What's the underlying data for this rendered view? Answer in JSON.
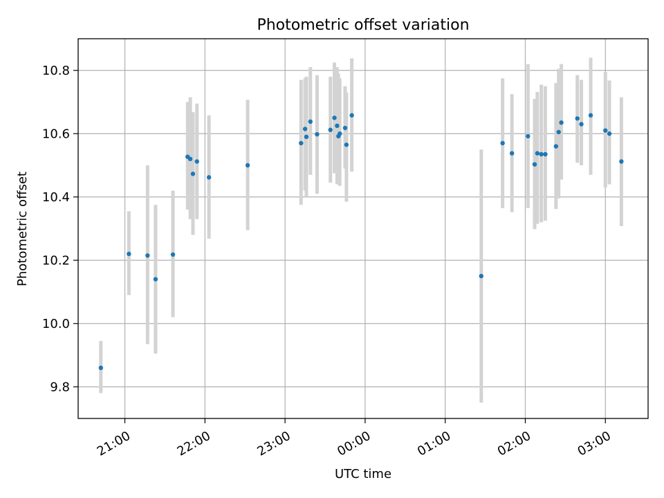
{
  "chart_data": {
    "type": "scatter",
    "title": "Photometric offset variation",
    "xlabel": "UTC time",
    "ylabel": "Photometric offset",
    "x_ticks": [
      "21:00",
      "22:00",
      "23:00",
      "00:00",
      "01:00",
      "02:00",
      "03:00"
    ],
    "y_ticks": [
      "9.8",
      "10.0",
      "10.2",
      "10.4",
      "10.6",
      "10.8"
    ],
    "ylim": [
      9.7,
      10.9
    ],
    "xlim": [
      "20:25",
      "03:32"
    ],
    "grid": true,
    "colors": {
      "point": "#1f77b4",
      "errorbar": "#d3d3d3"
    },
    "points": [
      {
        "x": "20:42",
        "y": 9.86,
        "lo": 9.78,
        "hi": 9.945
      },
      {
        "x": "21:03",
        "y": 10.22,
        "lo": 10.09,
        "hi": 10.355
      },
      {
        "x": "21:17",
        "y": 10.215,
        "lo": 9.935,
        "hi": 10.5
      },
      {
        "x": "21:23",
        "y": 10.14,
        "lo": 9.905,
        "hi": 10.375
      },
      {
        "x": "21:36",
        "y": 10.218,
        "lo": 10.02,
        "hi": 10.42
      },
      {
        "x": "21:47",
        "y": 10.527,
        "lo": 10.36,
        "hi": 10.7
      },
      {
        "x": "21:49",
        "y": 10.52,
        "lo": 10.33,
        "hi": 10.715
      },
      {
        "x": "21:51",
        "y": 10.473,
        "lo": 10.28,
        "hi": 10.668
      },
      {
        "x": "21:54",
        "y": 10.512,
        "lo": 10.33,
        "hi": 10.695
      },
      {
        "x": "22:03",
        "y": 10.462,
        "lo": 10.268,
        "hi": 10.658
      },
      {
        "x": "22:32",
        "y": 10.5,
        "lo": 10.295,
        "hi": 10.707
      },
      {
        "x": "23:12",
        "y": 10.57,
        "lo": 10.375,
        "hi": 10.77
      },
      {
        "x": "23:15",
        "y": 10.615,
        "lo": 10.42,
        "hi": 10.775
      },
      {
        "x": "23:16",
        "y": 10.59,
        "lo": 10.4,
        "hi": 10.78
      },
      {
        "x": "23:19",
        "y": 10.638,
        "lo": 10.47,
        "hi": 10.81
      },
      {
        "x": "23:24",
        "y": 10.598,
        "lo": 10.41,
        "hi": 10.785
      },
      {
        "x": "23:34",
        "y": 10.612,
        "lo": 10.445,
        "hi": 10.78
      },
      {
        "x": "23:37",
        "y": 10.65,
        "lo": 10.475,
        "hi": 10.825
      },
      {
        "x": "23:39",
        "y": 10.625,
        "lo": 10.44,
        "hi": 10.81
      },
      {
        "x": "23:40",
        "y": 10.592,
        "lo": 10.44,
        "hi": 10.79
      },
      {
        "x": "23:41",
        "y": 10.6,
        "lo": 10.435,
        "hi": 10.775
      },
      {
        "x": "23:45",
        "y": 10.618,
        "lo": 10.49,
        "hi": 10.75
      },
      {
        "x": "23:46",
        "y": 10.565,
        "lo": 10.385,
        "hi": 10.73
      },
      {
        "x": "23:50",
        "y": 10.658,
        "lo": 10.48,
        "hi": 10.838
      },
      {
        "x": "01:27",
        "y": 10.15,
        "lo": 9.75,
        "hi": 10.55
      },
      {
        "x": "01:43",
        "y": 10.57,
        "lo": 10.365,
        "hi": 10.775
      },
      {
        "x": "01:50",
        "y": 10.538,
        "lo": 10.352,
        "hi": 10.725
      },
      {
        "x": "02:02",
        "y": 10.592,
        "lo": 10.365,
        "hi": 10.82
      },
      {
        "x": "02:07",
        "y": 10.503,
        "lo": 10.298,
        "hi": 10.71
      },
      {
        "x": "02:09",
        "y": 10.538,
        "lo": 10.315,
        "hi": 10.732
      },
      {
        "x": "02:12",
        "y": 10.535,
        "lo": 10.32,
        "hi": 10.755
      },
      {
        "x": "02:15",
        "y": 10.535,
        "lo": 10.325,
        "hi": 10.75
      },
      {
        "x": "02:23",
        "y": 10.56,
        "lo": 10.362,
        "hi": 10.76
      },
      {
        "x": "02:25",
        "y": 10.605,
        "lo": 10.395,
        "hi": 10.805
      },
      {
        "x": "02:27",
        "y": 10.635,
        "lo": 10.455,
        "hi": 10.82
      },
      {
        "x": "02:39",
        "y": 10.648,
        "lo": 10.508,
        "hi": 10.785
      },
      {
        "x": "02:42",
        "y": 10.63,
        "lo": 10.5,
        "hi": 10.77
      },
      {
        "x": "02:49",
        "y": 10.658,
        "lo": 10.47,
        "hi": 10.84
      },
      {
        "x": "03:00",
        "y": 10.61,
        "lo": 10.43,
        "hi": 10.795
      },
      {
        "x": "03:03",
        "y": 10.6,
        "lo": 10.44,
        "hi": 10.768
      },
      {
        "x": "03:12",
        "y": 10.512,
        "lo": 10.308,
        "hi": 10.715
      }
    ]
  }
}
